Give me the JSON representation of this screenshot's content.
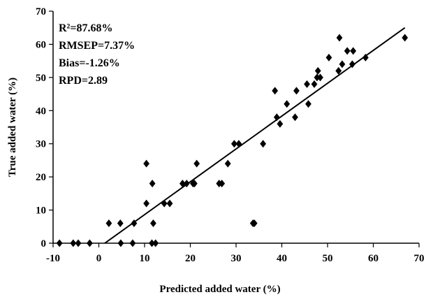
{
  "chart_data": {
    "type": "scatter",
    "title": "",
    "xlabel": "Predicted added water (%)",
    "ylabel": "True added water (%)",
    "xlim": [
      -10,
      70
    ],
    "ylim": [
      0,
      70
    ],
    "xticks": [
      "-10",
      "0",
      "10",
      "20",
      "30",
      "40",
      "50",
      "60",
      "70"
    ],
    "yticks": [
      "0",
      "10",
      "20",
      "30",
      "40",
      "50",
      "60",
      "70"
    ],
    "grid": false,
    "annotations": [
      "R²=87.68%",
      "RMSEP=7.37%",
      "Bias=-1.26%",
      "RPD=2.89"
    ],
    "points": [
      [
        -8.6,
        0
      ],
      [
        -5.6,
        0
      ],
      [
        -4.5,
        0
      ],
      [
        -2.0,
        0
      ],
      [
        2.2,
        6
      ],
      [
        4.7,
        6
      ],
      [
        4.8,
        0
      ],
      [
        7.4,
        0
      ],
      [
        7.7,
        6
      ],
      [
        10.4,
        24
      ],
      [
        10.4,
        12
      ],
      [
        11.7,
        18
      ],
      [
        11.9,
        6
      ],
      [
        11.6,
        0
      ],
      [
        12.4,
        0
      ],
      [
        14.3,
        12
      ],
      [
        15.5,
        12
      ],
      [
        18.3,
        18
      ],
      [
        19.2,
        18
      ],
      [
        20.6,
        18
      ],
      [
        20.9,
        18
      ],
      [
        21.4,
        24
      ],
      [
        26.3,
        18
      ],
      [
        26.9,
        18
      ],
      [
        28.2,
        24
      ],
      [
        29.6,
        30
      ],
      [
        30.6,
        30
      ],
      [
        33.7,
        6
      ],
      [
        34.0,
        6
      ],
      [
        35.9,
        30
      ],
      [
        38.5,
        46
      ],
      [
        38.9,
        38
      ],
      [
        39.6,
        36
      ],
      [
        41.1,
        42
      ],
      [
        42.9,
        38
      ],
      [
        43.2,
        46
      ],
      [
        45.5,
        48
      ],
      [
        45.8,
        42
      ],
      [
        47.1,
        48
      ],
      [
        47.7,
        50
      ],
      [
        47.9,
        52
      ],
      [
        48.4,
        50
      ],
      [
        50.3,
        56
      ],
      [
        52.4,
        52
      ],
      [
        52.6,
        62
      ],
      [
        53.2,
        54
      ],
      [
        54.3,
        58
      ],
      [
        55.4,
        54
      ],
      [
        55.6,
        58
      ],
      [
        58.3,
        56
      ],
      [
        66.9,
        62
      ]
    ],
    "fit_line": {
      "x": [
        1.3,
        66.9
      ],
      "y": [
        0,
        65
      ]
    }
  }
}
